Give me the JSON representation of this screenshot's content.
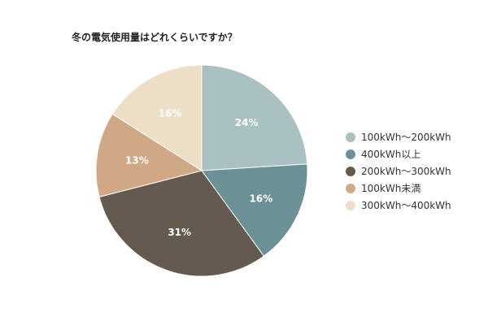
{
  "chart_data": {
    "type": "pie",
    "title": "冬の電気使用量はどれくらいですか？",
    "categories": [
      "100kWh～200kWh",
      "400kWh以上",
      "200kWh～300kWh",
      "100kWh未満",
      "300kWh～400kWh"
    ],
    "values": [
      24,
      16,
      31,
      13,
      16
    ],
    "labels": [
      "24%",
      "16%",
      "31%",
      "13%",
      "16%"
    ],
    "colors": [
      "#a9c1c1",
      "#6b9096",
      "#645a4f",
      "#d1a886",
      "#ecdfc6"
    ],
    "legend_position": "right"
  }
}
